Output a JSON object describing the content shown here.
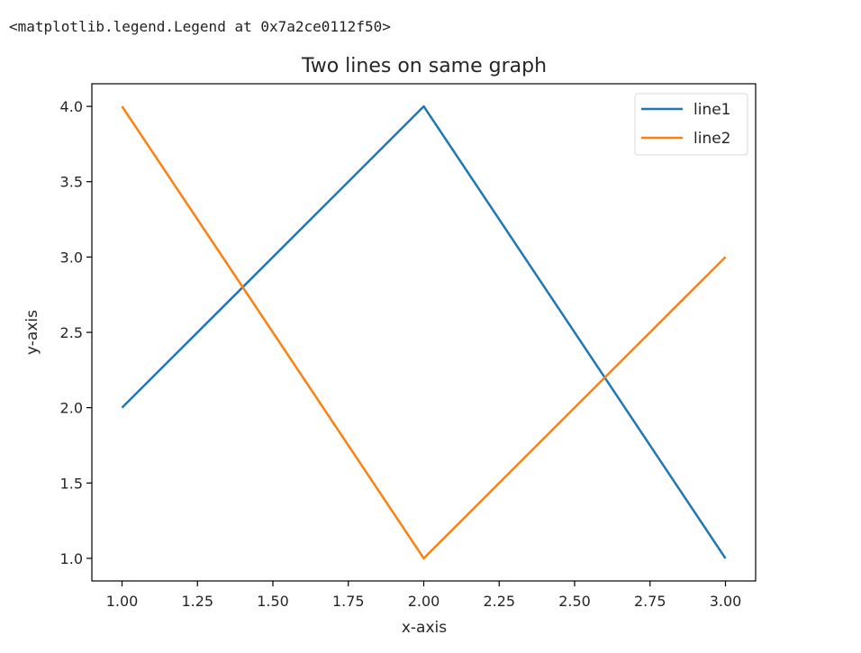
{
  "output": {
    "repr_text": "<matplotlib.legend.Legend at 0x7a2ce0112f50>"
  },
  "chart_data": {
    "type": "line",
    "title": "Two lines on same graph",
    "xlabel": "x-axis",
    "ylabel": "y-axis",
    "xlim": [
      0.9,
      3.1
    ],
    "ylim": [
      0.85,
      4.15
    ],
    "xticks": [
      1.0,
      1.25,
      1.5,
      1.75,
      2.0,
      2.25,
      2.5,
      2.75,
      3.0
    ],
    "xtick_labels": [
      "1.00",
      "1.25",
      "1.50",
      "1.75",
      "2.00",
      "2.25",
      "2.50",
      "2.75",
      "3.00"
    ],
    "yticks": [
      1.0,
      1.5,
      2.0,
      2.5,
      3.0,
      3.5,
      4.0
    ],
    "ytick_labels": [
      "1.0",
      "1.5",
      "2.0",
      "2.5",
      "3.0",
      "3.5",
      "4.0"
    ],
    "grid": false,
    "legend_position": "top-right",
    "series": [
      {
        "name": "line1",
        "color": "#1f77b4",
        "x": [
          1,
          2,
          3
        ],
        "y": [
          2,
          4,
          1
        ]
      },
      {
        "name": "line2",
        "color": "#ff7f0e",
        "x": [
          1,
          2,
          3
        ],
        "y": [
          4,
          1,
          3
        ]
      }
    ]
  }
}
